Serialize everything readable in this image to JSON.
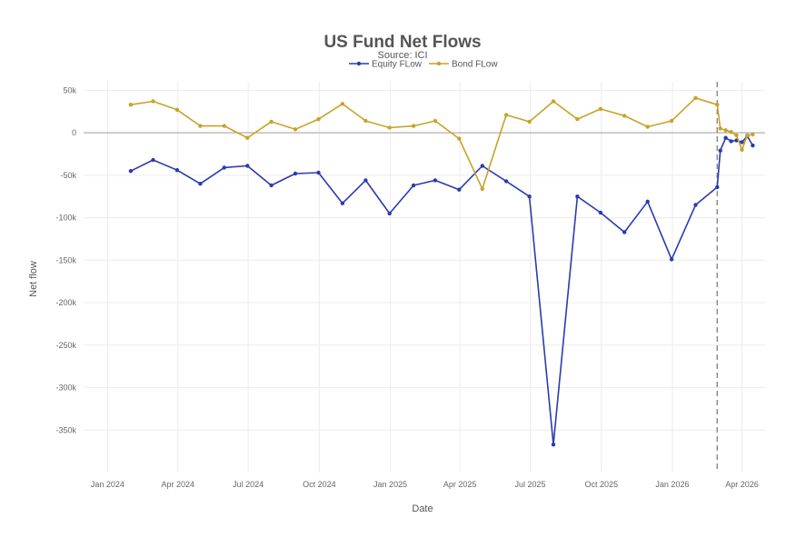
{
  "chart_data": {
    "type": "line",
    "title": "US Fund Net Flows",
    "subtitle": "Source: ICI",
    "xlabel": "Date",
    "ylabel": "Net flow",
    "x_ticks": [
      "Jan 2024",
      "Apr 2024",
      "Jul 2024",
      "Oct 2024",
      "Jan 2025",
      "Apr 2025",
      "Jul 2025",
      "Oct 2025",
      "Jan 2026",
      "Apr 2026"
    ],
    "y_ticks": [
      "50k",
      "0",
      "-50k",
      "-100k",
      "-150k",
      "-200k",
      "-250k",
      "-300k",
      "-350k"
    ],
    "ylim": [
      -400000,
      60000
    ],
    "xlim": [
      "2023-12-01",
      "2026-05-01"
    ],
    "grid": true,
    "legend_position": "top-center",
    "zero_line": true,
    "vline_date": "2026-02-28",
    "series": [
      {
        "name": "Equity FLow",
        "color": "#2a3bb0",
        "points": [
          [
            "2024-01-31",
            -45000
          ],
          [
            "2024-02-29",
            -32000
          ],
          [
            "2024-03-31",
            -44000
          ],
          [
            "2024-04-30",
            -60000
          ],
          [
            "2024-05-31",
            -41000
          ],
          [
            "2024-06-30",
            -39000
          ],
          [
            "2024-07-31",
            -62000
          ],
          [
            "2024-08-31",
            -48000
          ],
          [
            "2024-09-30",
            -47000
          ],
          [
            "2024-10-31",
            -83000
          ],
          [
            "2024-11-30",
            -56000
          ],
          [
            "2024-12-31",
            -95000
          ],
          [
            "2025-01-31",
            -62000
          ],
          [
            "2025-02-28",
            -56000
          ],
          [
            "2025-03-31",
            -67000
          ],
          [
            "2025-04-30",
            -39000
          ],
          [
            "2025-05-31",
            -57000
          ],
          [
            "2025-06-30",
            -75000
          ],
          [
            "2025-07-31",
            -367000
          ],
          [
            "2025-08-31",
            -75000
          ],
          [
            "2025-09-30",
            -94000
          ],
          [
            "2025-10-31",
            -117000
          ],
          [
            "2025-11-30",
            -81000
          ],
          [
            "2025-12-31",
            -149000
          ],
          [
            "2026-01-31",
            -85000
          ],
          [
            "2026-02-28",
            -64000
          ],
          [
            "2026-03-04",
            -21000
          ],
          [
            "2026-03-11",
            -6000
          ],
          [
            "2026-03-18",
            -10000
          ],
          [
            "2026-03-25",
            -9000
          ],
          [
            "2026-04-01",
            -11000
          ],
          [
            "2026-04-08",
            -4000
          ],
          [
            "2026-04-15",
            -15000
          ]
        ]
      },
      {
        "name": "Bond FLow",
        "color": "#c9a227",
        "points": [
          [
            "2024-01-31",
            33000
          ],
          [
            "2024-02-29",
            37000
          ],
          [
            "2024-03-31",
            27000
          ],
          [
            "2024-04-30",
            8000
          ],
          [
            "2024-05-31",
            8000
          ],
          [
            "2024-06-30",
            -6000
          ],
          [
            "2024-07-31",
            13000
          ],
          [
            "2024-08-31",
            4000
          ],
          [
            "2024-09-30",
            16000
          ],
          [
            "2024-10-31",
            34000
          ],
          [
            "2024-11-30",
            14000
          ],
          [
            "2024-12-31",
            6000
          ],
          [
            "2025-01-31",
            8000
          ],
          [
            "2025-02-28",
            14000
          ],
          [
            "2025-03-31",
            -7000
          ],
          [
            "2025-04-30",
            -66000
          ],
          [
            "2025-05-31",
            21000
          ],
          [
            "2025-06-30",
            13000
          ],
          [
            "2025-07-31",
            37000
          ],
          [
            "2025-08-31",
            16000
          ],
          [
            "2025-09-30",
            28000
          ],
          [
            "2025-10-31",
            20000
          ],
          [
            "2025-11-30",
            7000
          ],
          [
            "2025-12-31",
            14000
          ],
          [
            "2026-01-31",
            41000
          ],
          [
            "2026-02-28",
            33000
          ],
          [
            "2026-03-04",
            5000
          ],
          [
            "2026-03-11",
            3000
          ],
          [
            "2026-03-18",
            1000
          ],
          [
            "2026-03-25",
            -3000
          ],
          [
            "2026-04-01",
            -20000
          ],
          [
            "2026-04-08",
            -3000
          ],
          [
            "2026-04-15",
            -2000
          ]
        ]
      }
    ]
  }
}
